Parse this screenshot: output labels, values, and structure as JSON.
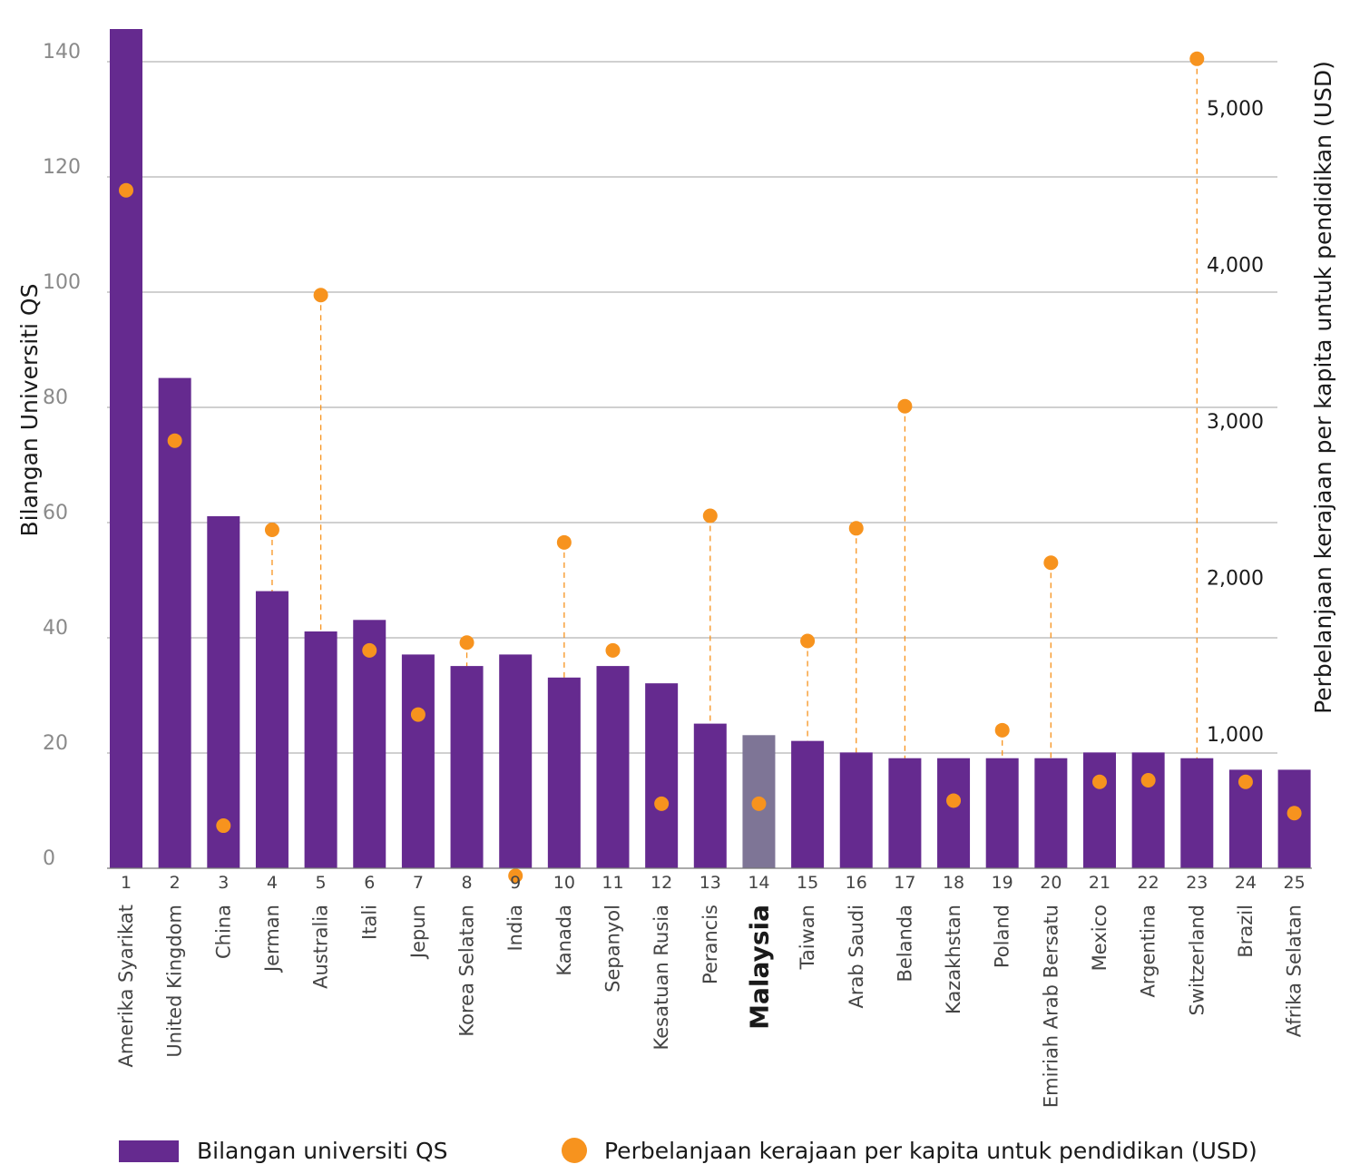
{
  "chart_data": {
    "type": "bar+scatter",
    "y_left_label": "Bilangan Universiti QS",
    "y_right_label": "Perbelanjaan kerajaan per kapita untuk pendidikan (USD)",
    "y_left_ticks": [
      "0",
      "20",
      "40",
      "60",
      "80",
      "100",
      "120",
      "140"
    ],
    "y_left_range": [
      0,
      140
    ],
    "y_right_ticks": [
      "1,000",
      "2,000",
      "3,000",
      "4,000",
      "5,000"
    ],
    "y_right_tick_values": [
      1000,
      2000,
      3000,
      4000,
      5000
    ],
    "highlight_category": "Malaysia",
    "categories": [
      {
        "rank": "1",
        "name": "Amerika Syarikat",
        "universities": 146,
        "spending": 4480
      },
      {
        "rank": "2",
        "name": "United Kingdom",
        "universities": 84,
        "spending": 2880
      },
      {
        "rank": "3",
        "name": "China",
        "universities": 60,
        "spending": 420
      },
      {
        "rank": "4",
        "name": "Jerman",
        "universities": 47,
        "spending": 2310
      },
      {
        "rank": "5",
        "name": "Australia",
        "universities": 40,
        "spending": 3810
      },
      {
        "rank": "6",
        "name": "Itali",
        "universities": 42,
        "spending": 1540
      },
      {
        "rank": "7",
        "name": "Jepun",
        "universities": 36,
        "spending": 1130
      },
      {
        "rank": "8",
        "name": "Korea Selatan",
        "universities": 34,
        "spending": 1590
      },
      {
        "rank": "9",
        "name": "India",
        "universities": 36,
        "spending": 100
      },
      {
        "rank": "10",
        "name": "Kanada",
        "universities": 32,
        "spending": 2230
      },
      {
        "rank": "11",
        "name": "Sepanyol",
        "universities": 34,
        "spending": 1540
      },
      {
        "rank": "12",
        "name": "Kesatuan Rusia",
        "universities": 31,
        "spending": 560
      },
      {
        "rank": "13",
        "name": "Perancis",
        "universities": 24,
        "spending": 2400
      },
      {
        "rank": "14",
        "name": "Malaysia",
        "universities": 22,
        "spending": 560
      },
      {
        "rank": "15",
        "name": "Taiwan",
        "universities": 21,
        "spending": 1600
      },
      {
        "rank": "16",
        "name": "Arab Saudi",
        "universities": 19,
        "spending": 2320
      },
      {
        "rank": "17",
        "name": "Belanda",
        "universities": 18,
        "spending": 3100
      },
      {
        "rank": "18",
        "name": "Kazakhstan",
        "universities": 18,
        "spending": 580
      },
      {
        "rank": "19",
        "name": "Poland",
        "universities": 18,
        "spending": 1030
      },
      {
        "rank": "20",
        "name": "Emiriah Arab Bersatu",
        "universities": 18,
        "spending": 2100
      },
      {
        "rank": "21",
        "name": "Mexico",
        "universities": 19,
        "spending": 700
      },
      {
        "rank": "22",
        "name": "Argentina",
        "universities": 19,
        "spending": 710
      },
      {
        "rank": "23",
        "name": "Switzerland",
        "universities": 18,
        "spending": 5320
      },
      {
        "rank": "24",
        "name": "Brazil",
        "universities": 16,
        "spending": 700
      },
      {
        "rank": "25",
        "name": "Afrika Selatan",
        "universities": 16,
        "spending": 500
      }
    ],
    "colors": {
      "bar": "#652a8f",
      "bar_highlight": "#7e7596",
      "dot": "#f7931e",
      "gridline": "#a0a0a0"
    }
  },
  "legend": {
    "bar_label": "Bilangan universiti QS",
    "dot_label": "Perbelanjaan kerajaan per kapita untuk pendidikan (USD)"
  }
}
